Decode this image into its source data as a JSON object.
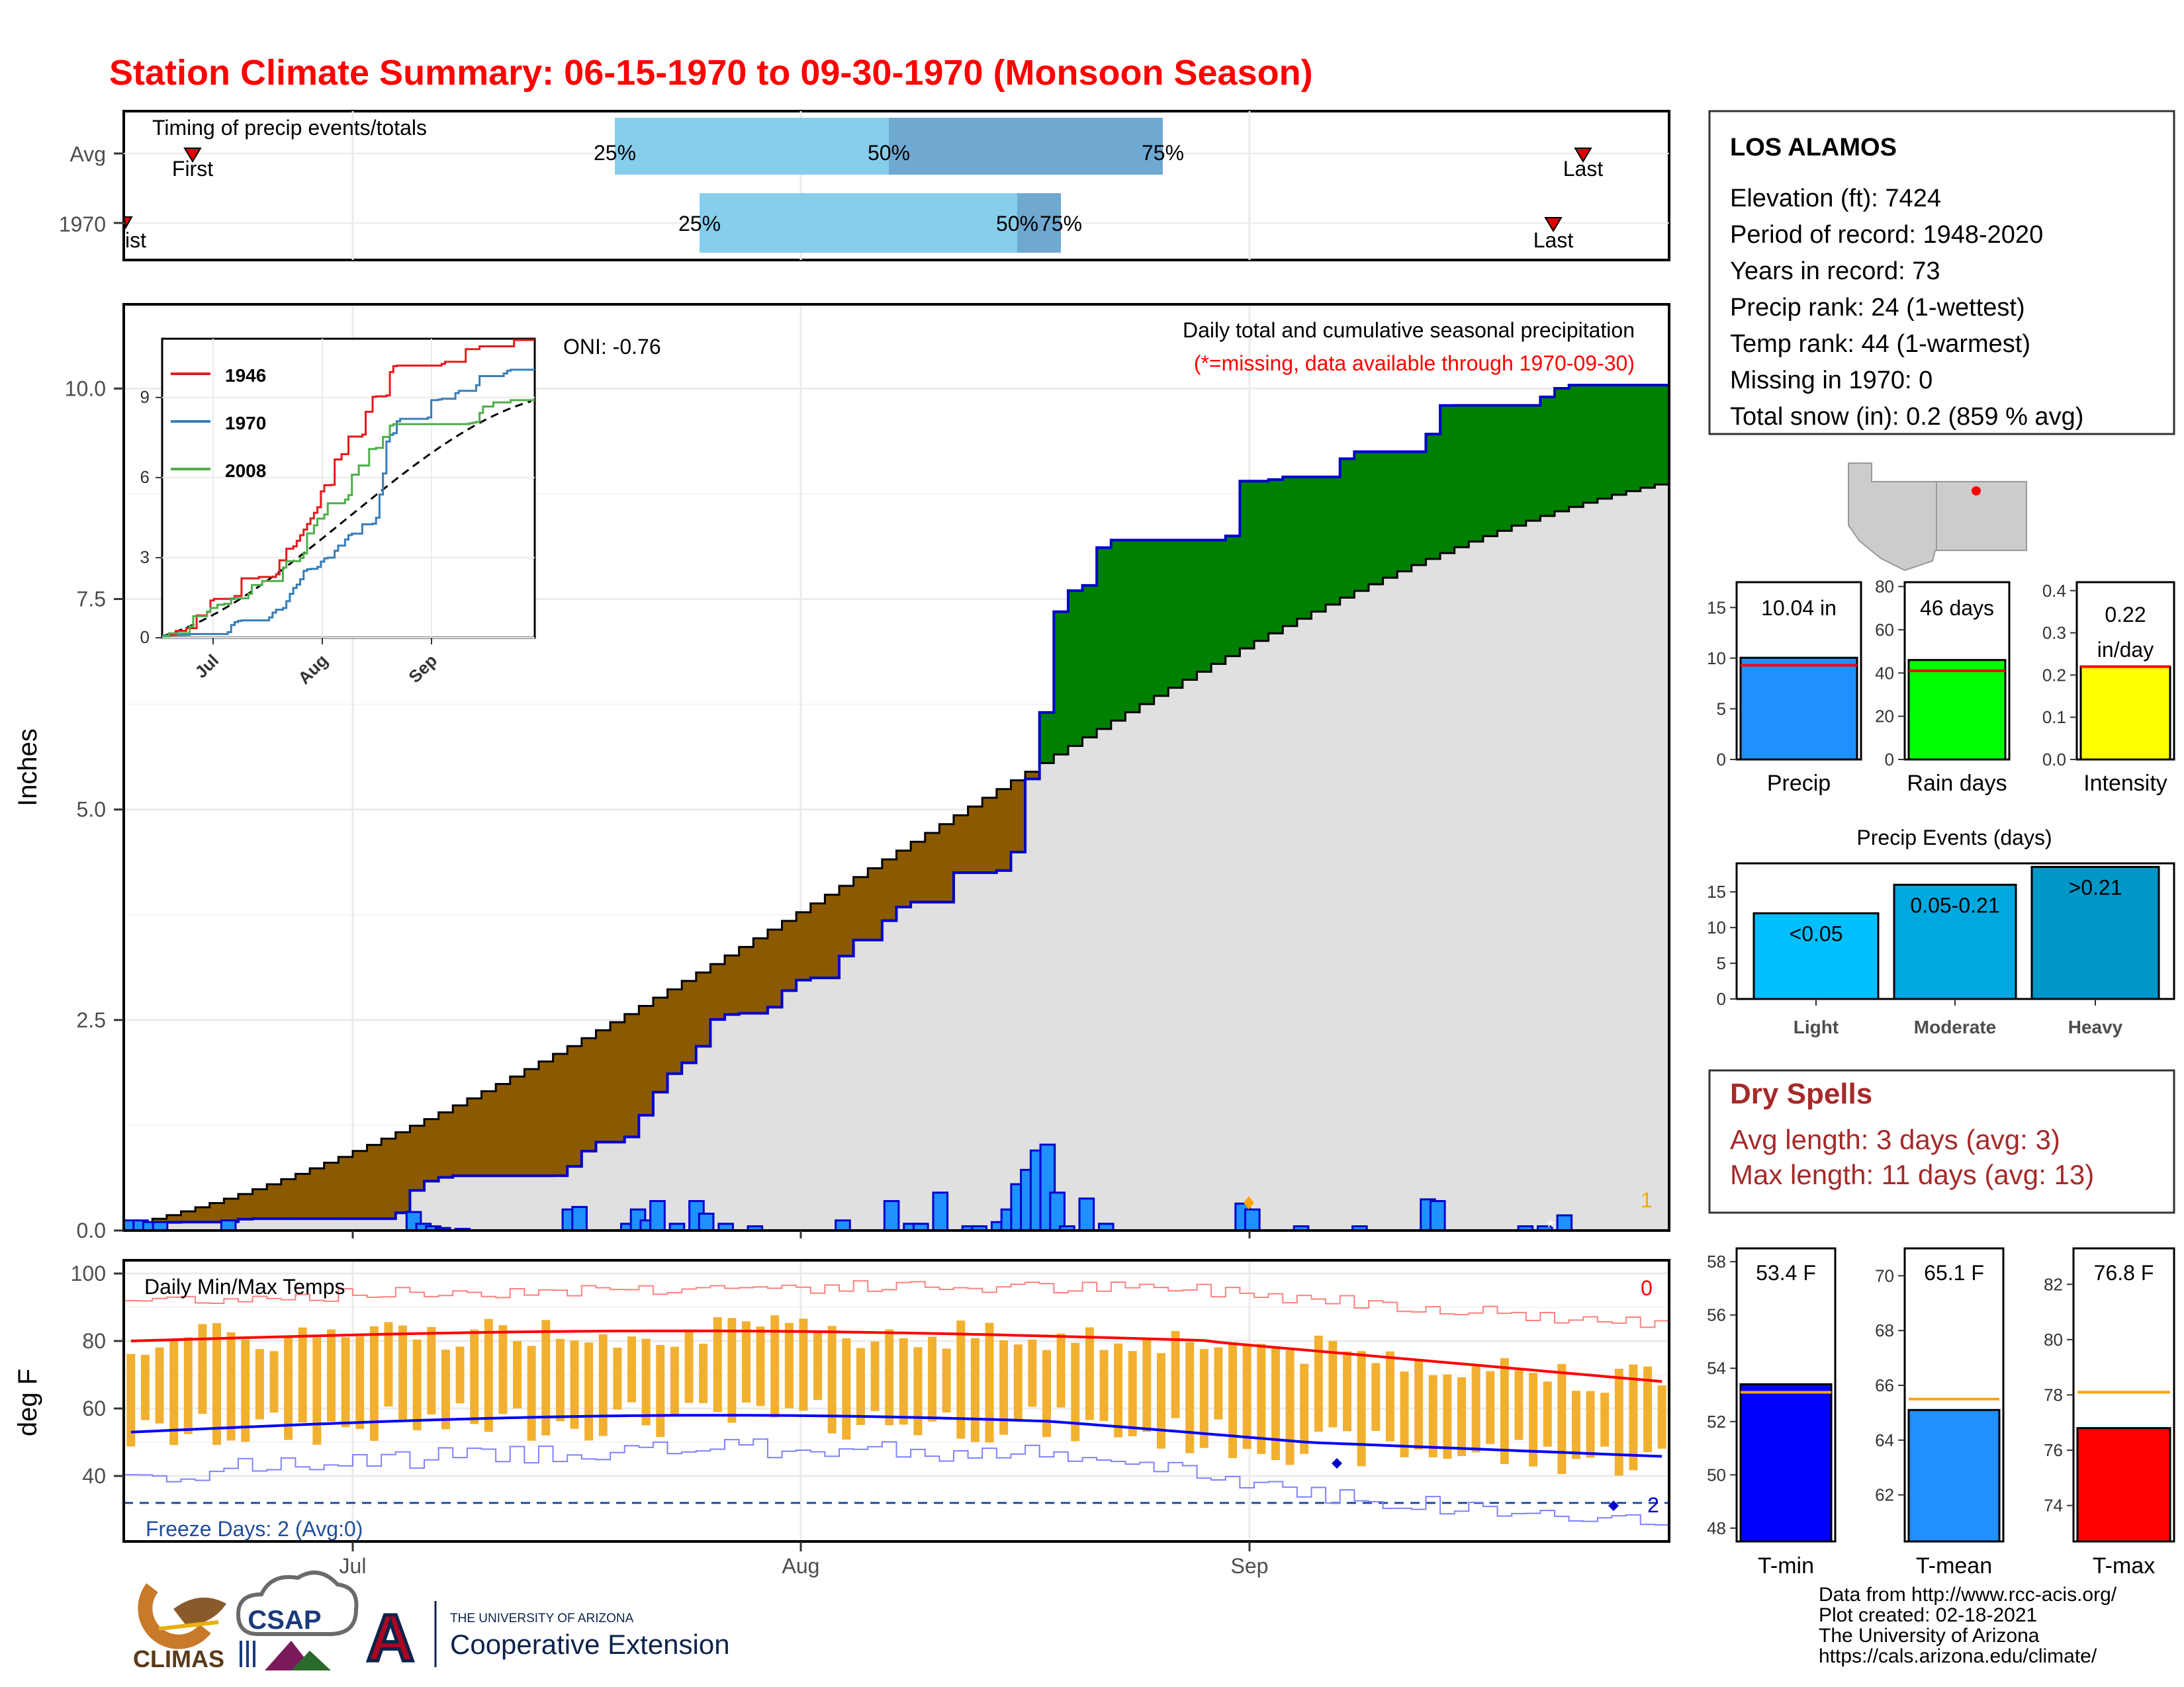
{
  "page_title": "Station Climate Summary: 06-15-1970 to 09-30-1970 (Monsoon Season)",
  "timing": {
    "title": "Timing of precip events/totals",
    "row_labels": [
      "Avg",
      "1970"
    ],
    "avg": {
      "first": "First",
      "last": "Last",
      "p25": "25%",
      "p50": "50%",
      "p75": "75%"
    },
    "y1970": {
      "first": "ist",
      "last": "Last",
      "p25": "25%",
      "p50": "50%",
      "p75": "75%"
    }
  },
  "main": {
    "annotation_title": "Daily total and cumulative seasonal precipitation",
    "annotation_missing": "(*=missing, data available through 1970-09-30)",
    "oni": "ONI: -0.76",
    "ylabel": "Inches",
    "yticks": [
      "0.0",
      "2.5",
      "5.0",
      "7.5",
      "10.0"
    ],
    "corner_count": "1",
    "snow_marker": "*"
  },
  "inset": {
    "legend": [
      "1946",
      "1970",
      "2008"
    ],
    "yticks": [
      "0",
      "3",
      "6",
      "9"
    ],
    "xticks": [
      "Jul",
      "Aug",
      "Sep"
    ]
  },
  "temps": {
    "title": "Daily Min/Max Temps",
    "count_label": "0",
    "ylabel": "deg F",
    "yticks": [
      "40",
      "60",
      "80",
      "100"
    ],
    "freeze": "Freeze Days: 2 (Avg:0)",
    "freeze_count": "2",
    "xticks": [
      "Jul",
      "Aug",
      "Sep"
    ]
  },
  "station": {
    "name": "LOS ALAMOS",
    "lines": [
      "Elevation (ft): 7424",
      "Period of record: 1948-2020",
      "Years in record: 73",
      "Precip rank: 24 (1-wettest)",
      "Temp rank: 44 (1-warmest)",
      "Missing in 1970: 0",
      "Total snow (in): 0.2 (859 % avg)"
    ]
  },
  "summary_bars": [
    {
      "label": "Precip",
      "value_text": "10.04 in",
      "yticks": [
        "0",
        "5",
        "10",
        "15"
      ],
      "ymax": 17.5,
      "value": 10.04,
      "avg": 9.3,
      "color": "#1e90ff"
    },
    {
      "label": "Rain days",
      "value_text": "46 days",
      "yticks": [
        "0",
        "20",
        "40",
        "60",
        "80"
      ],
      "ymax": 82,
      "value": 46,
      "avg": 41,
      "color": "#00ff00"
    },
    {
      "label": "Intensity",
      "value_text_1": "0.22",
      "value_text_2": "in/day",
      "yticks": [
        "0.0",
        "0.1",
        "0.2",
        "0.3",
        "0.4"
      ],
      "ymax": 0.42,
      "value": 0.22,
      "avg": 0.22,
      "color": "#ffff00"
    }
  ],
  "events": {
    "title": "Precip Events (days)",
    "yticks": [
      "0",
      "5",
      "10",
      "15"
    ],
    "categories": [
      "Light",
      "Moderate",
      "Heavy"
    ],
    "labels": [
      "<0.05",
      "0.05-0.21",
      ">0.21"
    ],
    "values": [
      12,
      16,
      18.5
    ],
    "colors": [
      "#00bfff",
      "#00a8e0",
      "#0096c8"
    ]
  },
  "dry_spells": {
    "title": "Dry Spells",
    "avg_length": "Avg length: 3 days (avg: 3)",
    "max_length": "Max length: 11 days (avg: 13)"
  },
  "temp_summary": [
    {
      "label": "T-min",
      "value_text": "53.4 F",
      "yticks": [
        "48",
        "50",
        "52",
        "54",
        "56",
        "58"
      ],
      "ymin": 47.5,
      "ymax": 58.5,
      "value": 53.4,
      "avg": 53.1,
      "color": "#0000ff"
    },
    {
      "label": "T-mean",
      "value_text": "65.1 F",
      "yticks": [
        "62",
        "64",
        "66",
        "68",
        "70"
      ],
      "ymin": 60.3,
      "ymax": 71,
      "value": 65.1,
      "avg": 65.5,
      "color": "#1e90ff"
    },
    {
      "label": "T-max",
      "value_text": "76.8 F",
      "yticks": [
        "74",
        "76",
        "78",
        "80",
        "82"
      ],
      "ymin": 72.7,
      "ymax": 83.3,
      "value": 76.8,
      "avg": 78.1,
      "color": "#ff0000"
    }
  ],
  "footer": {
    "lines": [
      "Data from http://www.rcc-acis.org/",
      "Plot created: 02-18-2021",
      "The University of Arizona",
      "https://cals.arizona.edu/climate/"
    ],
    "climas": "CLIMAS",
    "csap": "CSAP",
    "ua_line1": "THE UNIVERSITY OF ARIZONA",
    "ua_line2": "Cooperative Extension",
    "ua_letter": "A"
  },
  "chart_data": {
    "type": "area",
    "x_start": "1970-06-15",
    "x_end": "1970-09-30",
    "ylim": [
      0,
      11
    ],
    "cumulative_1970": [
      [
        0,
        0.08
      ],
      [
        5,
        0.1
      ],
      [
        10,
        0.1
      ],
      [
        12,
        0.14
      ],
      [
        20,
        0.14
      ],
      [
        27,
        0.14
      ],
      [
        28,
        0.22
      ],
      [
        29,
        0.45
      ],
      [
        31,
        0.6
      ],
      [
        33,
        0.65
      ],
      [
        44,
        0.65
      ],
      [
        46,
        0.8
      ],
      [
        47,
        0.95
      ],
      [
        48,
        1.05
      ],
      [
        51,
        1.05
      ],
      [
        53,
        1.4
      ],
      [
        54,
        1.6
      ],
      [
        55,
        1.75
      ],
      [
        56,
        1.9
      ],
      [
        58,
        2.05
      ],
      [
        59,
        2.25
      ],
      [
        60,
        2.5
      ],
      [
        62,
        2.58
      ],
      [
        65,
        2.58
      ],
      [
        66,
        2.65
      ],
      [
        67,
        2.75
      ],
      [
        68,
        2.95
      ],
      [
        70,
        3.0
      ],
      [
        72,
        3.0
      ],
      [
        73,
        3.15
      ],
      [
        74,
        3.45
      ],
      [
        75,
        3.45
      ],
      [
        77,
        3.45
      ],
      [
        78,
        3.75
      ],
      [
        80,
        3.9
      ],
      [
        84,
        3.9
      ],
      [
        85,
        4.25
      ],
      [
        89,
        4.25
      ],
      [
        90,
        4.3
      ],
      [
        91,
        4.5
      ],
      [
        92,
        5.1
      ],
      [
        93,
        5.7
      ],
      [
        94,
        6.2
      ],
      [
        95,
        7.2
      ],
      [
        96,
        7.6
      ],
      [
        98,
        7.6
      ],
      [
        99,
        7.8
      ],
      [
        100,
        8.2
      ],
      [
        112,
        8.2
      ],
      [
        113,
        8.25
      ],
      [
        114,
        8.9
      ],
      [
        115,
        8.9
      ],
      [
        117,
        8.9
      ],
      [
        118,
        8.95
      ],
      [
        124,
        8.95
      ],
      [
        125,
        9.25
      ],
      [
        133,
        9.25
      ],
      [
        134,
        9.65
      ],
      [
        135,
        9.8
      ],
      [
        144,
        9.8
      ],
      [
        145,
        9.9
      ],
      [
        146,
        9.9
      ],
      [
        147,
        10.04
      ],
      [
        157,
        10.04
      ]
    ],
    "cumulative_avg": [
      [
        0,
        0.08
      ],
      [
        157,
        8.85
      ]
    ],
    "daily_precip": [
      [
        0,
        0.12
      ],
      [
        1,
        0.12
      ],
      [
        2,
        0.1
      ],
      [
        3,
        0.1
      ],
      [
        10,
        0.12
      ],
      [
        29,
        0.22
      ],
      [
        30,
        0.08
      ],
      [
        31,
        0.05
      ],
      [
        32,
        0.03
      ],
      [
        34,
        0.02
      ],
      [
        45,
        0.25
      ],
      [
        46,
        0.28
      ],
      [
        51,
        0.08
      ],
      [
        52,
        0.25
      ],
      [
        53,
        0.12
      ],
      [
        54,
        0.35
      ],
      [
        56,
        0.08
      ],
      [
        58,
        0.35
      ],
      [
        59,
        0.2
      ],
      [
        61,
        0.08
      ],
      [
        64,
        0.05
      ],
      [
        73,
        0.12
      ],
      [
        78,
        0.35
      ],
      [
        80,
        0.08
      ],
      [
        81,
        0.08
      ],
      [
        83,
        0.45
      ],
      [
        86,
        0.05
      ],
      [
        87,
        0.05
      ],
      [
        89,
        0.1
      ],
      [
        90,
        0.25
      ],
      [
        91,
        0.55
      ],
      [
        92,
        0.72
      ],
      [
        93,
        0.95
      ],
      [
        94,
        1.02
      ],
      [
        95,
        0.45
      ],
      [
        96,
        0.05
      ],
      [
        98,
        0.38
      ],
      [
        100,
        0.08
      ],
      [
        114,
        0.32
      ],
      [
        115,
        0.25
      ],
      [
        120,
        0.05
      ],
      [
        126,
        0.05
      ],
      [
        133,
        0.37
      ],
      [
        134,
        0.35
      ],
      [
        143,
        0.05
      ],
      [
        145,
        0.05
      ],
      [
        147,
        0.18
      ]
    ]
  }
}
